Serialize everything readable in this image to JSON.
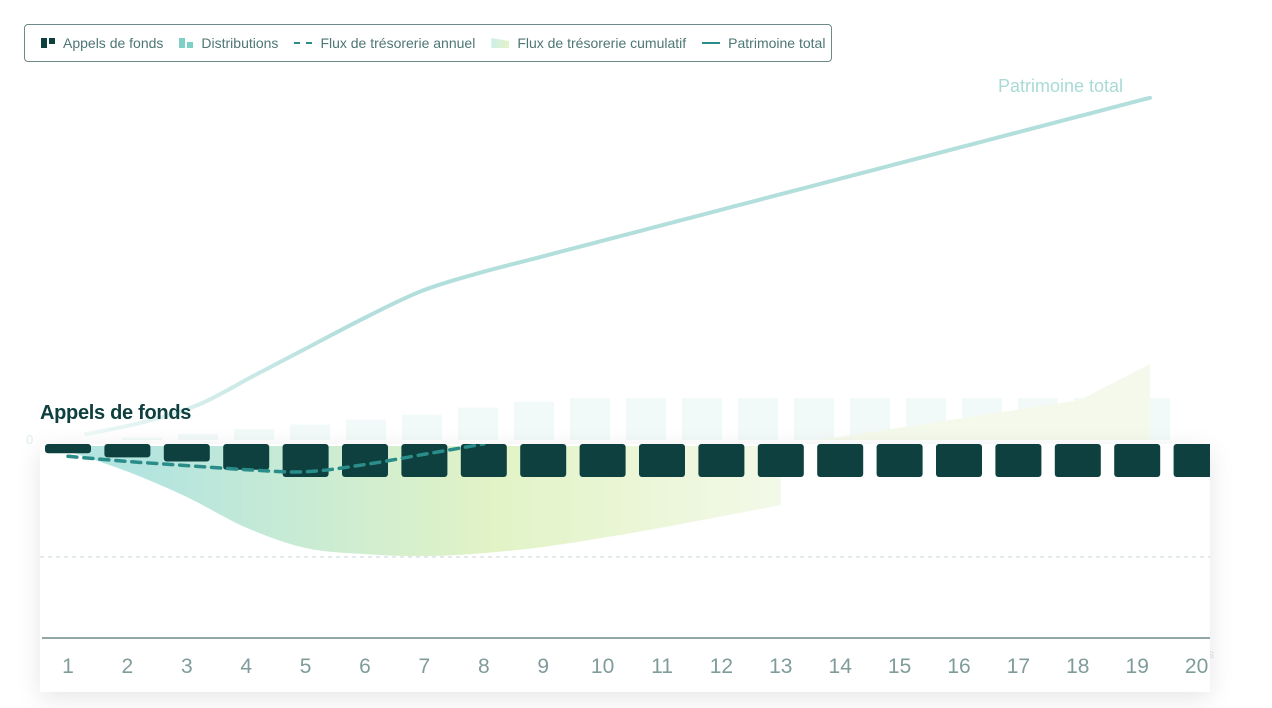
{
  "legend": {
    "items": [
      {
        "label": "Appels de fonds",
        "icon": "bar-dark-icon"
      },
      {
        "label": "Distributions",
        "icon": "bar-light-icon"
      },
      {
        "label": "Flux de trésorerie annuel",
        "icon": "dashed-line-icon"
      },
      {
        "label": "Flux de trésorerie cumulatif",
        "icon": "area-icon"
      },
      {
        "label": "Patrimoine total",
        "icon": "solid-line-icon"
      }
    ]
  },
  "colors": {
    "calls": "#0d403e",
    "distributions": "#c9ece8",
    "annual_flow": "#2a8d8a",
    "cumulative_start": "#b3e4df",
    "cumulative_end": "#e2f3c6",
    "total_wealth": "#b2dedc",
    "axis": "#6d8a88"
  },
  "card": {
    "title": "Appels de fonds"
  },
  "line_label": "Patrimoine total",
  "faint_left_label": "0",
  "faint_right_label": "s",
  "chart_data": {
    "type": "bar",
    "categories": [
      "1",
      "2",
      "3",
      "4",
      "5",
      "6",
      "7",
      "8",
      "9",
      "10",
      "11",
      "12",
      "13",
      "14",
      "15",
      "16",
      "17",
      "18",
      "19",
      "20"
    ],
    "series": [
      {
        "name": "Appels de fonds",
        "values": [
          -0.9,
          -1.3,
          -1.7,
          -2.5,
          -3.2,
          -3.2,
          -3.2,
          -3.2,
          -3.2,
          -3.2,
          -3.2,
          -3.2,
          -3.2,
          -3.2,
          -3.2,
          -3.2,
          -3.2,
          -3.2,
          -3.2,
          -3.2
        ]
      },
      {
        "name": "Flux de trésorerie annuel",
        "values": [
          -1.0,
          -1.5,
          -1.9,
          -2.3,
          -2.5,
          -1.8,
          -0.8,
          0.2,
          0.8,
          1.2,
          1.4,
          1.5,
          1.6,
          1.6,
          1.6,
          1.6,
          1.6,
          1.6,
          1.6,
          1.6
        ]
      },
      {
        "name": "Flux de trésorerie cumulatif",
        "values": [
          -0.5,
          -2.5,
          -5.0,
          -8.0,
          -10.0,
          -10.6,
          -10.8,
          -10.5,
          -9.9,
          -9.0,
          -8.0,
          -6.9,
          -5.8,
          -4.6,
          -3.4,
          -2.2,
          -0.9,
          0.4,
          1.6,
          2.9
        ]
      },
      {
        "name": "Distributions",
        "values": [
          0.0,
          0.2,
          0.5,
          0.9,
          1.3,
          1.7,
          2.1,
          2.7,
          3.2,
          3.5,
          3.5,
          3.5,
          3.5,
          3.5,
          3.5,
          3.5,
          3.5,
          3.5,
          3.5,
          3.5
        ]
      },
      {
        "name": "Patrimoine total",
        "values": [
          1.0,
          3.0,
          6.0,
          11.0,
          16.0,
          21.0,
          25.5,
          28.5,
          31.0,
          33.5,
          36.0,
          38.5,
          41.0,
          43.5,
          46.0,
          48.5,
          51.0,
          53.5,
          56.0,
          58.5
        ]
      }
    ]
  }
}
